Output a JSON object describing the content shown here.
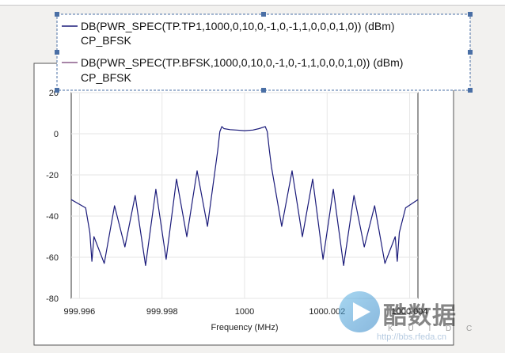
{
  "chart_data": {
    "type": "line",
    "xlabel": "Frequency (MHz)",
    "ylabel": "",
    "xlim": [
      999.9958,
      1000.0042
    ],
    "ylim": [
      -80,
      20
    ],
    "x_ticks": [
      "999.996",
      "999.998",
      "1000",
      "1000.002",
      "1000.004"
    ],
    "y_ticks": [
      "20",
      "0",
      "-20",
      "-40",
      "-60",
      "-80"
    ],
    "grid": true,
    "legend_position": "top",
    "series": [
      {
        "name": "DB(PWR_SPEC(TP.TP1,1000,0,10,0,-1,0,-1,1,0,0,0,1,0)) (dBm)",
        "sub": "CP_BFSK",
        "color": "#1b1b7a",
        "x": [
          999.9958,
          999.99615,
          999.99625,
          999.9963,
          999.99635,
          999.9966,
          999.99685,
          999.9971,
          999.99735,
          999.9976,
          999.99785,
          999.9981,
          999.99835,
          999.9986,
          999.99885,
          999.9991,
          999.99935,
          999.9994,
          999.99945,
          999.9995,
          999.99965,
          999.9998,
          1000.0,
          1000.0002,
          1000.00035,
          1000.0005,
          1000.00055,
          1000.0006,
          1000.00065,
          1000.0009,
          1000.00115,
          1000.0014,
          1000.00165,
          1000.0019,
          1000.00215,
          1000.0024,
          1000.00265,
          1000.0029,
          1000.00315,
          1000.0034,
          1000.00365,
          1000.0037,
          1000.00375,
          1000.0039,
          1000.0042
        ],
        "y": [
          -32,
          -36,
          -48,
          -62,
          -50,
          -63,
          -35,
          -55,
          -30,
          -64,
          -27,
          -61,
          -22,
          -50,
          -18,
          -45,
          -8,
          1,
          3.5,
          2.5,
          2,
          1.8,
          1.5,
          1.8,
          2.5,
          3.5,
          1,
          -8,
          -16,
          -45,
          -18,
          -50,
          -22,
          -61,
          -27,
          -64,
          -30,
          -55,
          -35,
          -63,
          -50,
          -62,
          -48,
          -36,
          -32
        ]
      },
      {
        "name": "DB(PWR_SPEC(TP.BFSK,1000,0,10,0,-1,0,-1,1,0,0,0,1,0)) (dBm)",
        "sub": "CP_BFSK",
        "color": "#8a5b8a",
        "x": [],
        "y": []
      }
    ]
  },
  "watermark": {
    "brand": "酷数据",
    "sub": "K U I D C",
    "url": "http://bbs.rfeda.cn"
  }
}
